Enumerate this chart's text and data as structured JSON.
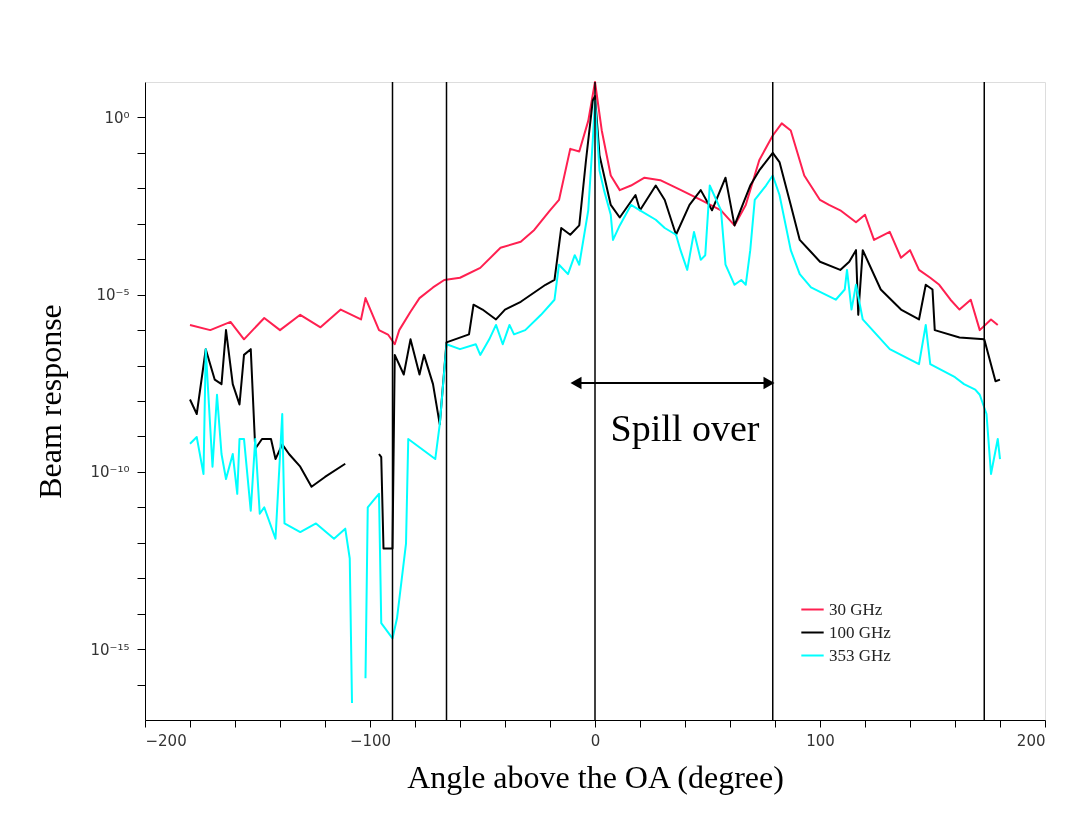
{
  "chart_data": {
    "type": "line",
    "xlabel": "Angle above the OA (degree)",
    "ylabel": "Beam response",
    "annotations": [
      "Spill over"
    ],
    "log": "y",
    "grid": false,
    "legend": "bottom right",
    "xlim": [
      -200,
      200
    ],
    "xticks": [
      {
        "value": -200,
        "label": "−200"
      },
      {
        "value": -180,
        "label": null
      },
      {
        "value": -160,
        "label": null
      },
      {
        "value": -140,
        "label": null
      },
      {
        "value": -120,
        "label": null
      },
      {
        "value": -100,
        "label": "−100"
      },
      {
        "value": -80,
        "label": null
      },
      {
        "value": -60,
        "label": null
      },
      {
        "value": -40,
        "label": null
      },
      {
        "value": -20,
        "label": null
      },
      0,
      {
        "value": 20,
        "label": null
      },
      {
        "value": 40,
        "label": null
      },
      {
        "value": 60,
        "label": null
      },
      {
        "value": 80,
        "label": null
      },
      100,
      {
        "value": 120,
        "label": null
      },
      {
        "value": 140,
        "label": null
      },
      {
        "value": 160,
        "label": null
      },
      {
        "value": 180,
        "label": null
      },
      200
    ],
    "ylim": [
      1e-17,
      10
    ],
    "yticks": [
      {
        "value": 1,
        "label": "10⁰"
      },
      {
        "value": 0.1,
        "label": null
      },
      {
        "value": 0.01,
        "label": null
      },
      {
        "value": 0.001,
        "label": null
      },
      {
        "value": 0.0001,
        "label": null
      },
      {
        "value": 1e-05,
        "label": "10⁻⁵"
      },
      {
        "value": 1e-06,
        "label": null
      },
      {
        "value": 1e-07,
        "label": null
      },
      {
        "value": 1e-08,
        "label": null
      },
      {
        "value": 1e-09,
        "label": null
      },
      {
        "value": 1e-10,
        "label": "10⁻¹⁰"
      },
      {
        "value": 1e-11,
        "label": null
      },
      {
        "value": 1e-12,
        "label": null
      },
      {
        "value": 1e-13,
        "label": null
      },
      {
        "value": 1e-14,
        "label": null
      },
      {
        "value": 1e-15,
        "label": "10⁻¹⁵"
      },
      {
        "value": 1e-16,
        "label": null
      }
    ],
    "ref_lines": [
      {
        "axis": "x",
        "value": -90,
        "color": "#000000"
      },
      {
        "axis": "x",
        "value": -66,
        "color": "#000000"
      },
      {
        "axis": "x",
        "value": 0,
        "color": "#000000"
      },
      {
        "axis": "x",
        "value": 79,
        "color": "#000000"
      },
      {
        "axis": "x",
        "value": 173,
        "color": "#000000"
      }
    ],
    "series": [
      {
        "name": "30 GHz",
        "color": "#ff2050",
        "x": [
          -180,
          -171,
          -162,
          -156,
          -147,
          -140,
          -131,
          -122,
          -113,
          -104,
          -102,
          -96,
          -92,
          -89,
          -87,
          -82,
          -78,
          -72,
          -67,
          -60,
          -51,
          -42,
          -33,
          -27,
          -20,
          -16,
          -11,
          -7,
          -3,
          0,
          3,
          7,
          11,
          16,
          22,
          29,
          38,
          47,
          56,
          62,
          67,
          73,
          79,
          83,
          87,
          93,
          100,
          104,
          109,
          116,
          120,
          124,
          131,
          136,
          140,
          144,
          149,
          153,
          158,
          162,
          167,
          171,
          176,
          179
        ],
        "values": [
          1.4e-06,
          1e-06,
          1.7e-06,
          5.5e-07,
          2.2e-06,
          1e-06,
          2.7e-06,
          1.2e-06,
          3.8e-06,
          2e-06,
          8e-06,
          1e-06,
          7.5e-07,
          4e-07,
          1e-06,
          3.3e-06,
          8e-06,
          1.6e-05,
          2.6e-05,
          3e-05,
          5.7e-05,
          0.00021,
          0.00031,
          0.00067,
          0.0024,
          0.0047,
          0.13,
          0.11,
          0.8,
          10,
          0.43,
          0.023,
          0.0089,
          0.012,
          0.02,
          0.017,
          0.009,
          0.0047,
          0.0024,
          0.0009,
          0.0034,
          0.062,
          0.31,
          0.68,
          0.43,
          0.023,
          0.0047,
          0.0034,
          0.0024,
          0.0011,
          0.0018,
          0.00035,
          0.00059,
          0.00011,
          0.00018,
          5e-05,
          3e-05,
          1.9e-05,
          7.2e-06,
          3.8e-06,
          7.2e-06,
          1e-06,
          2e-06,
          1.4e-06
        ]
      },
      {
        "name": "100 GHz",
        "color": "#000000",
        "x": [
          -180,
          -177,
          -173,
          -169,
          -166,
          -164,
          -161,
          -158,
          -156,
          -153,
          -151,
          -148,
          -144,
          -142,
          -139,
          -136,
          -131,
          -126,
          -120,
          -111,
          -108,
          -96,
          -95,
          -94,
          -90,
          -89,
          -85,
          -82,
          -78,
          -76,
          -72,
          -69,
          -66,
          -56,
          -54,
          -50,
          -44,
          -40,
          -33,
          -22,
          -18,
          -15,
          -11,
          -7,
          -4,
          -1,
          0,
          2,
          7,
          11,
          18,
          20,
          27,
          31,
          36,
          42,
          47,
          52,
          58,
          62,
          69,
          73,
          79,
          82,
          87,
          91,
          96,
          100,
          109,
          113,
          116,
          117,
          119,
          127,
          136,
          144,
          147,
          150,
          151,
          162,
          173,
          178,
          180
        ],
        "values": [
          1.1e-08,
          4.3e-09,
          2.9e-07,
          4e-08,
          3e-08,
          1e-06,
          3e-08,
          8e-09,
          2e-07,
          2.9e-07,
          4.5e-10,
          8.5e-10,
          8.5e-10,
          2.3e-10,
          6e-10,
          3.2e-10,
          1.4e-10,
          3.8e-11,
          7.2e-11,
          1.7e-10,
          null,
          3.2e-10,
          2.6e-10,
          6.9e-13,
          6.9e-13,
          2e-07,
          5.6e-08,
          5.5e-07,
          5.6e-08,
          2e-07,
          3e-08,
          2.2e-09,
          4.5e-07,
          7.6e-07,
          5.2e-06,
          3.8e-06,
          2e-06,
          3.8e-06,
          6.3e-06,
          1.9e-05,
          2.6e-05,
          0.00076,
          0.00049,
          0.0009,
          0.062,
          3,
          4,
          0.086,
          0.0034,
          0.0015,
          0.0065,
          0.0024,
          0.012,
          0.0047,
          0.00049,
          0.0034,
          0.0089,
          0.0024,
          0.02,
          0.0009,
          0.012,
          0.032,
          0.1,
          0.055,
          0.0034,
          0.00035,
          0.00016,
          8.5e-05,
          5e-05,
          8.5e-05,
          0.00018,
          2.7e-06,
          0.00018,
          1.4e-05,
          3.8e-06,
          2e-06,
          1.9e-05,
          1.4e-05,
          1e-06,
          6.2e-07,
          5.5e-07,
          3.6e-08,
          4e-08
        ]
      },
      {
        "name": "353 GHz",
        "color": "#00ffff",
        "x": [
          -180,
          -177,
          -174,
          -173,
          -170,
          -168,
          -166,
          -164,
          -161,
          -159,
          -158,
          -156,
          -153,
          -151,
          -149,
          -147,
          -142,
          -139,
          -138,
          -131,
          -124,
          -116,
          -111,
          -109,
          -108,
          -105,
          -102,
          -101,
          -98,
          -96,
          -95,
          -90,
          -88,
          -84,
          -83,
          -71,
          -69,
          -66,
          -60,
          -53,
          -51,
          -47,
          -44,
          -41,
          -38,
          -36,
          -31,
          -24,
          -18,
          -16,
          -12,
          -9,
          -7,
          -3,
          -1,
          0,
          2,
          4,
          7,
          8,
          11,
          16,
          20,
          27,
          31,
          36,
          38,
          41,
          44,
          47,
          49,
          51,
          56,
          58,
          62,
          65,
          67,
          69,
          71,
          76,
          79,
          82,
          87,
          91,
          96,
          100,
          107,
          111,
          112,
          114,
          116,
          119,
          131,
          144,
          147,
          149,
          160,
          164,
          169,
          171,
          174,
          176,
          179,
          180
        ],
        "values": [
          6.2e-10,
          9.6e-10,
          8.7e-11,
          2.9e-07,
          1.4e-10,
          1.5e-08,
          3.2e-10,
          6.3e-11,
          3.2e-10,
          2.4e-11,
          8.5e-10,
          8.5e-10,
          8e-12,
          8.5e-10,
          6.6e-12,
          1e-11,
          1.3e-12,
          4.3e-09,
          3.5e-12,
          2e-12,
          3.5e-12,
          1.3e-12,
          2.5e-12,
          3.6e-13,
          3e-17,
          null,
          1.5e-16,
          1e-11,
          1.7e-11,
          2.4e-11,
          5.4e-15,
          2e-15,
          7.4e-15,
          9.5e-13,
          8.5e-10,
          2.3e-10,
          2.2e-09,
          4e-07,
          2.9e-07,
          4e-07,
          2e-07,
          5.5e-07,
          1.4e-06,
          4e-07,
          1.4e-06,
          7.6e-07,
          1e-06,
          2.7e-06,
          7.2e-06,
          7e-05,
          3.8e-05,
          0.00013,
          7e-05,
          0.0024,
          0.22,
          3,
          0.032,
          0.0089,
          0.0018,
          0.00035,
          0.0009,
          0.0034,
          0.0024,
          0.0013,
          0.00076,
          0.00049,
          0.00018,
          5e-05,
          0.00059,
          9.6e-05,
          0.00013,
          0.012,
          0.0024,
          7e-05,
          1.9e-05,
          2.6e-05,
          1.9e-05,
          0.00018,
          0.0047,
          0.012,
          0.023,
          0.0065,
          0.00018,
          3.8e-05,
          1.6e-05,
          1.2e-05,
          7.2e-06,
          1.4e-05,
          5e-05,
          3.8e-06,
          1.9e-05,
          2e-06,
          2.9e-07,
          1.1e-07,
          1.4e-06,
          1.1e-07,
          4.7e-08,
          3e-08,
          2.1e-08,
          1.5e-08,
          4.3e-09,
          8.7e-11,
          8.5e-10,
          2.3e-10
        ]
      }
    ]
  }
}
